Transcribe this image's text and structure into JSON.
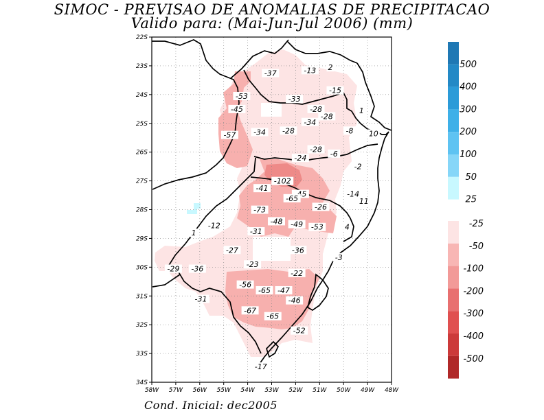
{
  "title": "SIMOC - PREVISAO DE ANOMALIAS DE PRECIPITACAO",
  "subtitle": "Valido para: (Mai-Jun-Jul 2006) (mm)",
  "footer": "Cond. Inicial: dec2005",
  "map": {
    "lon_range": [
      -58,
      -48
    ],
    "lat_range": [
      -34,
      -22
    ],
    "x_ticks": [
      "58W",
      "57W",
      "56W",
      "55W",
      "54W",
      "53W",
      "52W",
      "51W",
      "50W",
      "49W",
      "48W"
    ],
    "y_ticks": [
      "22S",
      "23S",
      "24S",
      "25S",
      "26S",
      "27S",
      "28S",
      "29S",
      "30S",
      "31S",
      "32S",
      "33S",
      "34S"
    ],
    "grid": true
  },
  "colorbar": {
    "positive": [
      {
        "label": "500",
        "color": "#1f78b4"
      },
      {
        "label": "400",
        "color": "#2389c6"
      },
      {
        "label": "300",
        "color": "#2b9bd8"
      },
      {
        "label": "200",
        "color": "#3eb0e8"
      },
      {
        "label": "100",
        "color": "#5ec3f2"
      },
      {
        "label": "50",
        "color": "#86d6f8"
      },
      {
        "label": "25",
        "color": "#c8f8ff"
      }
    ],
    "negative": [
      {
        "label": "-25",
        "color": "#fde4e4"
      },
      {
        "label": "-50",
        "color": "#f8b6b4"
      },
      {
        "label": "-100",
        "color": "#f29a98"
      },
      {
        "label": "-200",
        "color": "#e87070"
      },
      {
        "label": "-300",
        "color": "#e05050"
      },
      {
        "label": "-400",
        "color": "#cc3a3a"
      },
      {
        "label": "-500",
        "color": "#b02828"
      }
    ]
  },
  "anomaly_labels": [
    {
      "lon": -53.05,
      "lat": -23.3,
      "text": "-37"
    },
    {
      "lon": -51.4,
      "lat": -23.2,
      "text": "-13"
    },
    {
      "lon": -50.55,
      "lat": -23.1,
      "text": "2"
    },
    {
      "lon": -50.35,
      "lat": -23.9,
      "text": "-15"
    },
    {
      "lon": -54.25,
      "lat": -24.1,
      "text": "-53"
    },
    {
      "lon": -52.05,
      "lat": -24.2,
      "text": "-33"
    },
    {
      "lon": -54.45,
      "lat": -24.55,
      "text": "-45"
    },
    {
      "lon": -51.15,
      "lat": -24.55,
      "text": "-28"
    },
    {
      "lon": -49.25,
      "lat": -24.6,
      "text": "1"
    },
    {
      "lon": -50.7,
      "lat": -24.8,
      "text": "-28"
    },
    {
      "lon": -51.4,
      "lat": -25.0,
      "text": "-34"
    },
    {
      "lon": -53.5,
      "lat": -25.35,
      "text": "-34"
    },
    {
      "lon": -52.3,
      "lat": -25.3,
      "text": "-28"
    },
    {
      "lon": -49.75,
      "lat": -25.3,
      "text": "-8"
    },
    {
      "lon": -48.75,
      "lat": -25.4,
      "text": "10"
    },
    {
      "lon": -54.75,
      "lat": -25.45,
      "text": "-57"
    },
    {
      "lon": -51.15,
      "lat": -25.95,
      "text": "-28"
    },
    {
      "lon": -50.4,
      "lat": -26.1,
      "text": "-6"
    },
    {
      "lon": -51.8,
      "lat": -26.25,
      "text": "-24"
    },
    {
      "lon": -49.4,
      "lat": -26.55,
      "text": "-2"
    },
    {
      "lon": -52.55,
      "lat": -27.05,
      "text": "-102"
    },
    {
      "lon": -53.4,
      "lat": -27.3,
      "text": "-41"
    },
    {
      "lon": -51.8,
      "lat": -27.5,
      "text": "-45"
    },
    {
      "lon": -52.15,
      "lat": -27.65,
      "text": "-65"
    },
    {
      "lon": -49.6,
      "lat": -27.5,
      "text": "-14"
    },
    {
      "lon": -49.15,
      "lat": -27.75,
      "text": "11"
    },
    {
      "lon": -50.95,
      "lat": -27.95,
      "text": "-26"
    },
    {
      "lon": -53.5,
      "lat": -28.05,
      "text": "-73"
    },
    {
      "lon": -52.8,
      "lat": -28.45,
      "text": "-48"
    },
    {
      "lon": -51.95,
      "lat": -28.55,
      "text": "-49"
    },
    {
      "lon": -51.1,
      "lat": -28.65,
      "text": "-53"
    },
    {
      "lon": -55.4,
      "lat": -28.6,
      "text": "-12"
    },
    {
      "lon": -53.65,
      "lat": -28.8,
      "text": "-31"
    },
    {
      "lon": -49.85,
      "lat": -28.65,
      "text": "4"
    },
    {
      "lon": -56.25,
      "lat": -28.85,
      "text": "1"
    },
    {
      "lon": -54.65,
      "lat": -29.45,
      "text": "-27"
    },
    {
      "lon": -51.9,
      "lat": -29.45,
      "text": "-36"
    },
    {
      "lon": -50.2,
      "lat": -29.7,
      "text": "-3"
    },
    {
      "lon": -53.8,
      "lat": -29.95,
      "text": "-23"
    },
    {
      "lon": -57.1,
      "lat": -30.1,
      "text": "-29"
    },
    {
      "lon": -56.1,
      "lat": -30.1,
      "text": "-36"
    },
    {
      "lon": -51.95,
      "lat": -30.25,
      "text": "-22"
    },
    {
      "lon": -54.1,
      "lat": -30.65,
      "text": "-56"
    },
    {
      "lon": -53.3,
      "lat": -30.85,
      "text": "-65"
    },
    {
      "lon": -52.5,
      "lat": -30.85,
      "text": "-47"
    },
    {
      "lon": -55.95,
      "lat": -31.15,
      "text": "-31"
    },
    {
      "lon": -52.05,
      "lat": -31.2,
      "text": "-46"
    },
    {
      "lon": -53.9,
      "lat": -31.55,
      "text": "-67"
    },
    {
      "lon": -52.95,
      "lat": -31.75,
      "text": "-65"
    },
    {
      "lon": -51.85,
      "lat": -32.25,
      "text": "-52"
    },
    {
      "lon": -53.45,
      "lat": -33.5,
      "text": "-17"
    }
  ]
}
